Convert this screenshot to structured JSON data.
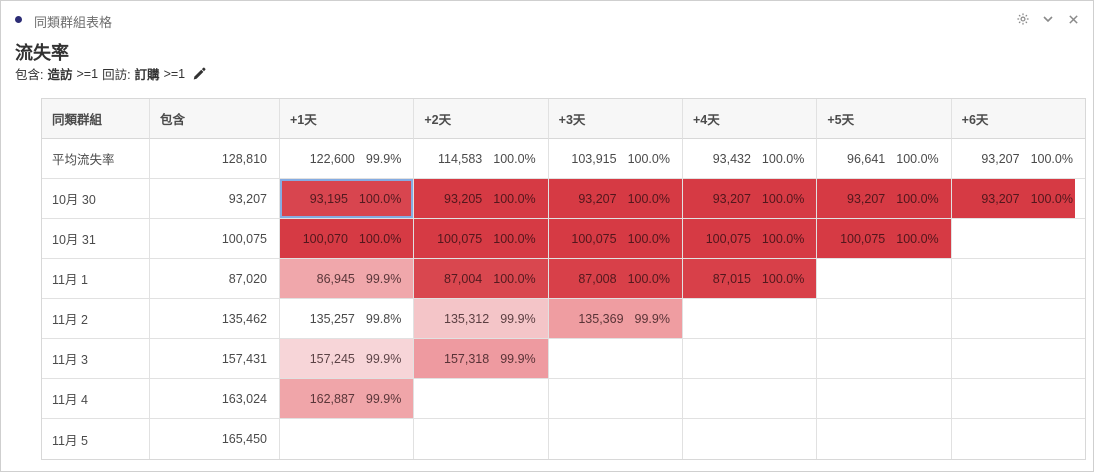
{
  "panel": {
    "title": "同類群組表格",
    "accent_color": "#2c2c75",
    "actions": [
      {
        "name": "settings",
        "icon": "gear-icon"
      },
      {
        "name": "collapse",
        "icon": "chevron-down-icon"
      },
      {
        "name": "close",
        "icon": "close-icon"
      }
    ]
  },
  "report": {
    "title": "流失率",
    "filter": {
      "include_label": "包含:",
      "include_metric": "造訪",
      "include_condition": ">=1",
      "return_label": "回訪:",
      "return_metric": "訂購",
      "return_condition": ">=1"
    }
  },
  "colors": {
    "dark_red": "#d63a44",
    "selected_border": "#85ace2",
    "header_bg": "#f7f7f7"
  },
  "chart_data": {
    "type": "table",
    "title": "流失率",
    "columns": [
      "同類群組",
      "包含",
      "+1天",
      "+2天",
      "+3天",
      "+4天",
      "+5天",
      "+6天"
    ],
    "average_row": {
      "label": "平均流失率",
      "included": "128,810",
      "cells": [
        {
          "value": "122,600",
          "pct": "99.9%"
        },
        {
          "value": "114,583",
          "pct": "100.0%"
        },
        {
          "value": "103,915",
          "pct": "100.0%"
        },
        {
          "value": "93,432",
          "pct": "100.0%"
        },
        {
          "value": "96,641",
          "pct": "100.0%"
        },
        {
          "value": "93,207",
          "pct": "100.0%"
        }
      ]
    },
    "rows": [
      {
        "label": "10月 30",
        "included": "93,207",
        "cells": [
          {
            "value": "93,195",
            "pct": "100.0%",
            "bg": "#d8454f",
            "selected": true
          },
          {
            "value": "93,205",
            "pct": "100.0%",
            "bg": "#d63a44"
          },
          {
            "value": "93,207",
            "pct": "100.0%",
            "bg": "#d63a44"
          },
          {
            "value": "93,207",
            "pct": "100.0%",
            "bg": "#d63a44"
          },
          {
            "value": "93,207",
            "pct": "100.0%",
            "bg": "#d63a44"
          },
          {
            "value": "93,207",
            "pct": "100.0%",
            "bg": "#d63a44"
          }
        ]
      },
      {
        "label": "10月 31",
        "included": "100,075",
        "cells": [
          {
            "value": "100,070",
            "pct": "100.0%",
            "bg": "#d63a44"
          },
          {
            "value": "100,075",
            "pct": "100.0%",
            "bg": "#d63a44"
          },
          {
            "value": "100,075",
            "pct": "100.0%",
            "bg": "#d63a44"
          },
          {
            "value": "100,075",
            "pct": "100.0%",
            "bg": "#d63a44"
          },
          {
            "value": "100,075",
            "pct": "100.0%",
            "bg": "#d63a44"
          },
          null
        ]
      },
      {
        "label": "11月 1",
        "included": "87,020",
        "cells": [
          {
            "value": "86,945",
            "pct": "99.9%",
            "bg": "#f0a7ab"
          },
          {
            "value": "87,004",
            "pct": "100.0%",
            "bg": "#d9474f"
          },
          {
            "value": "87,008",
            "pct": "100.0%",
            "bg": "#d84049"
          },
          {
            "value": "87,015",
            "pct": "100.0%",
            "bg": "#d84049"
          },
          null,
          null
        ]
      },
      {
        "label": "11月 2",
        "included": "135,462",
        "cells": [
          {
            "value": "135,257",
            "pct": "99.8%",
            "bg": "#ffffff"
          },
          {
            "value": "135,312",
            "pct": "99.9%",
            "bg": "#f4c5c8"
          },
          {
            "value": "135,369",
            "pct": "99.9%",
            "bg": "#ef9da1"
          },
          null,
          null,
          null
        ]
      },
      {
        "label": "11月 3",
        "included": "157,431",
        "cells": [
          {
            "value": "157,245",
            "pct": "99.9%",
            "bg": "#f7d5d8"
          },
          {
            "value": "157,318",
            "pct": "99.9%",
            "bg": "#ee9aa0"
          },
          null,
          null,
          null,
          null
        ]
      },
      {
        "label": "11月 4",
        "included": "163,024",
        "cells": [
          {
            "value": "162,887",
            "pct": "99.9%",
            "bg": "#f0a5a9"
          },
          null,
          null,
          null,
          null,
          null
        ]
      },
      {
        "label": "11月 5",
        "included": "165,450",
        "cells": [
          null,
          null,
          null,
          null,
          null,
          null
        ]
      }
    ]
  }
}
